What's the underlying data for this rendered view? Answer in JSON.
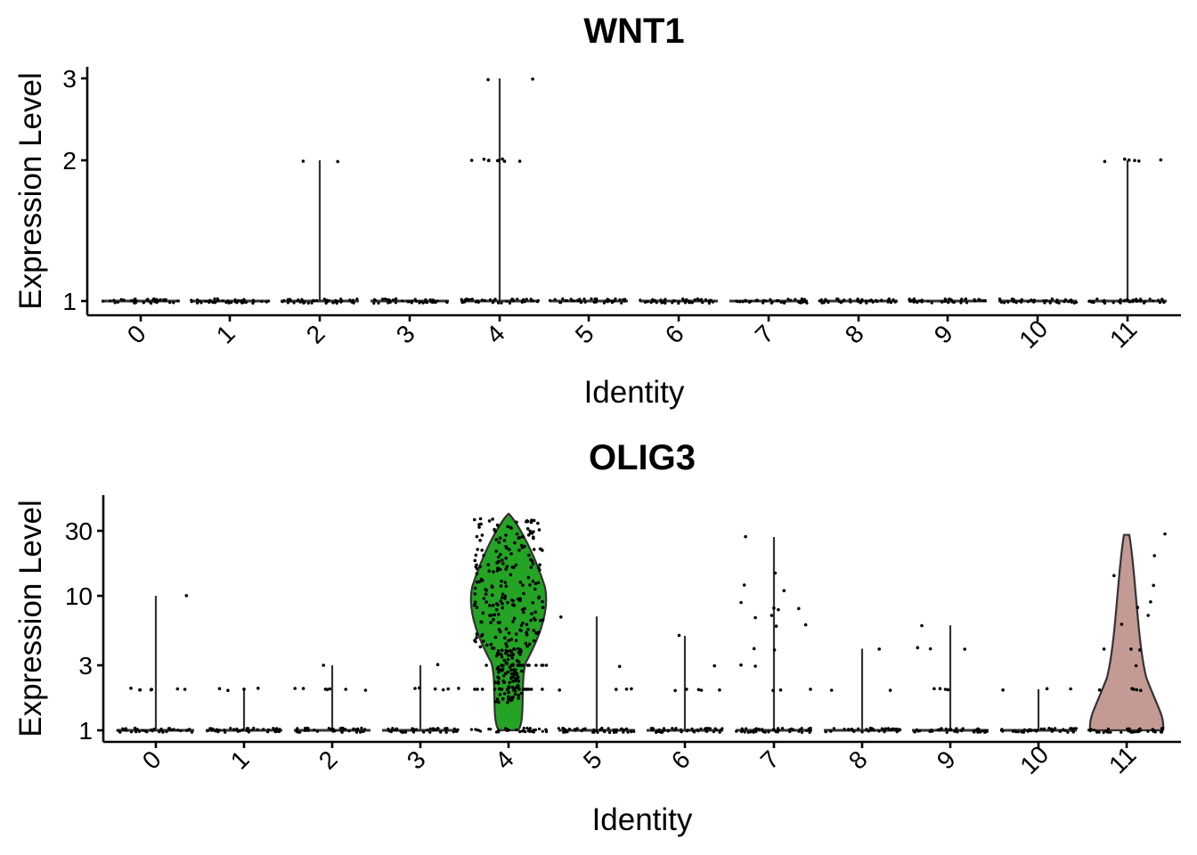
{
  "chart_data": [
    {
      "type": "violin",
      "title": "WNT1",
      "xlabel": "Identity",
      "ylabel": "Expression Level",
      "categories": [
        "0",
        "1",
        "2",
        "3",
        "4",
        "5",
        "6",
        "7",
        "8",
        "9",
        "10",
        "11"
      ],
      "y_ticks": [
        "1",
        "2",
        "3"
      ],
      "y_scale": "log",
      "ylim": [
        1,
        3
      ],
      "max_values": [
        1,
        1,
        2,
        1,
        3,
        1,
        1,
        1,
        1,
        1,
        1,
        2
      ],
      "jitter_points": {
        "2": [
          2,
          2
        ],
        "4": [
          3,
          3,
          2,
          2,
          2,
          2,
          2,
          2,
          2,
          2,
          2
        ],
        "11": [
          2,
          2,
          2,
          2,
          2,
          2
        ]
      },
      "fill_colors": [
        "#F8766D",
        "#DE8C00",
        "#B79F00",
        "#7CAE00",
        "#00BA38",
        "#00C08B",
        "#00BFC4",
        "#00B4F0",
        "#619CFF",
        "#C77CFF",
        "#F564E3",
        "#FF64B0"
      ],
      "legend": "none"
    },
    {
      "type": "violin",
      "title": "OLIG3",
      "xlabel": "Identity",
      "ylabel": "Expression Level",
      "categories": [
        "0",
        "1",
        "2",
        "3",
        "4",
        "5",
        "6",
        "7",
        "8",
        "9",
        "10",
        "11"
      ],
      "y_ticks": [
        "1",
        "3",
        "10",
        "30"
      ],
      "y_scale": "log",
      "ylim": [
        1,
        40
      ],
      "max_values": [
        10,
        2,
        3,
        3,
        40,
        7,
        5,
        27,
        4,
        6,
        2,
        28
      ],
      "jitter_points": {
        "0": [
          10,
          2,
          2,
          2,
          2,
          2,
          2,
          2
        ],
        "1": [
          2,
          2,
          2,
          2
        ],
        "2": [
          2,
          2,
          2,
          2,
          2,
          2,
          2,
          3
        ],
        "3": [
          2,
          2,
          2,
          2,
          2,
          2,
          3
        ],
        "5": [
          7,
          3,
          2,
          2,
          2,
          2
        ],
        "6": [
          5,
          3,
          2,
          2,
          2,
          2,
          2
        ],
        "7": [
          27,
          15,
          12,
          11,
          9,
          8,
          8,
          8,
          7,
          7,
          6,
          6,
          4,
          4,
          3,
          3,
          2,
          2,
          2
        ],
        "8": [
          4,
          2,
          2
        ],
        "9": [
          6,
          4,
          4,
          4,
          2,
          2,
          2,
          2
        ],
        "10": [
          2,
          2,
          2
        ],
        "11": [
          28,
          20,
          14,
          12,
          9,
          8,
          7,
          6,
          4,
          4,
          4,
          3,
          2,
          2,
          2,
          2,
          2
        ]
      },
      "fill_colors": [
        "#F8766D",
        "#DE8C00",
        "#B79F00",
        "#7CAE00",
        "#24A324",
        "#00C08B",
        "#00BFC4",
        "#00B4F0",
        "#619CFF",
        "#C77CFF",
        "#F564E3",
        "#C49A94"
      ],
      "filled_violins": {
        "4": "#24A324",
        "11": "#C49A94"
      },
      "legend": "none"
    }
  ]
}
